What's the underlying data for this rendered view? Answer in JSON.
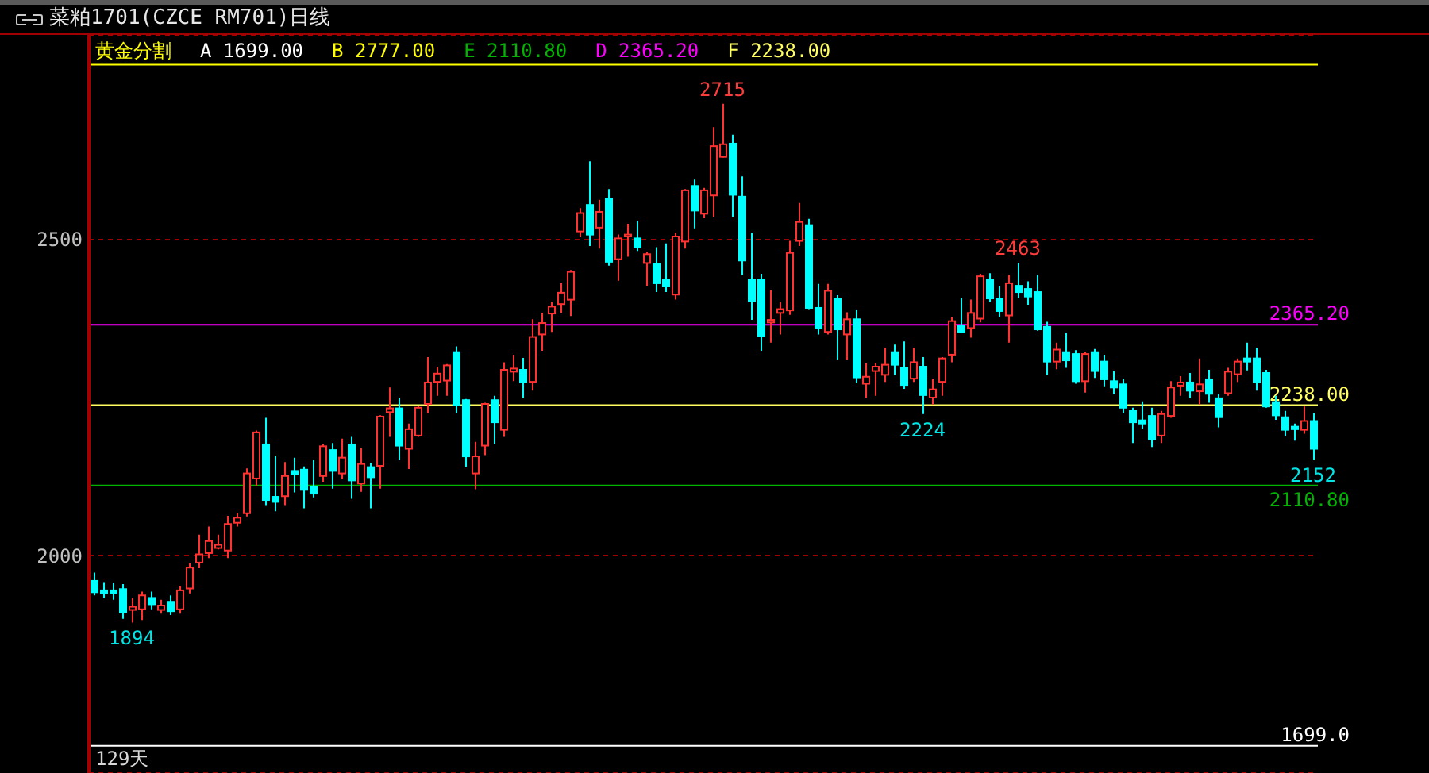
{
  "chart_data": {
    "type": "candlestick",
    "title": "菜粕1701(CZCE RM701)日线",
    "categories": [
      null,
      null,
      null,
      null,
      null,
      null,
      null,
      null,
      null,
      null,
      null,
      null,
      null,
      null,
      null,
      null,
      null,
      null,
      null,
      null,
      null,
      null,
      null,
      null,
      null,
      null,
      null,
      null,
      null,
      null,
      null,
      null,
      null,
      null,
      null,
      null,
      null,
      null,
      null,
      null,
      null,
      null,
      null,
      null,
      null,
      null,
      null,
      null,
      null,
      null,
      null,
      null,
      null,
      null,
      null,
      null,
      null,
      null,
      null,
      null,
      null,
      null,
      null,
      null,
      null,
      null,
      null,
      null,
      null,
      null,
      null,
      null,
      null,
      null,
      null,
      null,
      null,
      null,
      null,
      null,
      null,
      null,
      null,
      null,
      null,
      null,
      null,
      null,
      null,
      null,
      null,
      null,
      null,
      null,
      null,
      null,
      null,
      null,
      null,
      null,
      null,
      null,
      null,
      null,
      null,
      null,
      null,
      null,
      null,
      null,
      null,
      null,
      null,
      null,
      null,
      null,
      null,
      null,
      null,
      null,
      null,
      null,
      null,
      null,
      null,
      null,
      null,
      null,
      null
    ],
    "ohlc": [
      [
        1960,
        1973,
        1937,
        1942
      ],
      [
        1945,
        1958,
        1933,
        1940
      ],
      [
        1945,
        1957,
        1930,
        1940
      ],
      [
        1947,
        1955,
        1900,
        1910
      ],
      [
        1914,
        1933,
        1894,
        1919
      ],
      [
        1915,
        1943,
        1898,
        1937
      ],
      [
        1933,
        1943,
        1915,
        1923
      ],
      [
        1914,
        1930,
        1908,
        1921
      ],
      [
        1927,
        1937,
        1906,
        1912
      ],
      [
        1915,
        1952,
        1908,
        1945
      ],
      [
        1948,
        1988,
        1940,
        1981
      ],
      [
        1989,
        2033,
        1980,
        2002
      ],
      [
        2004,
        2046,
        1996,
        2023
      ],
      [
        2012,
        2033,
        2010,
        2017
      ],
      [
        2008,
        2063,
        1996,
        2050
      ],
      [
        2052,
        2068,
        2046,
        2060
      ],
      [
        2067,
        2138,
        2062,
        2130
      ],
      [
        2122,
        2198,
        2110,
        2195
      ],
      [
        2176,
        2218,
        2080,
        2088
      ],
      [
        2093,
        2157,
        2070,
        2085
      ],
      [
        2094,
        2148,
        2080,
        2126
      ],
      [
        2134,
        2155,
        2100,
        2129
      ],
      [
        2136,
        2141,
        2075,
        2104
      ],
      [
        2109,
        2151,
        2092,
        2098
      ],
      [
        2126,
        2176,
        2117,
        2173
      ],
      [
        2167,
        2178,
        2106,
        2134
      ],
      [
        2130,
        2185,
        2121,
        2155
      ],
      [
        2176,
        2188,
        2090,
        2119
      ],
      [
        2114,
        2171,
        2101,
        2145
      ],
      [
        2140,
        2146,
        2075,
        2124
      ],
      [
        2142,
        2222,
        2106,
        2220
      ],
      [
        2227,
        2266,
        2188,
        2233
      ],
      [
        2233,
        2249,
        2151,
        2174
      ],
      [
        2169,
        2209,
        2137,
        2200
      ],
      [
        2190,
        2237,
        2188,
        2234
      ],
      [
        2240,
        2314,
        2226,
        2274
      ],
      [
        2275,
        2299,
        2253,
        2288
      ],
      [
        2277,
        2303,
        2253,
        2301
      ],
      [
        2322,
        2331,
        2226,
        2238
      ],
      [
        2246,
        2248,
        2140,
        2157
      ],
      [
        2130,
        2180,
        2105,
        2157
      ],
      [
        2174,
        2242,
        2159,
        2240
      ],
      [
        2246,
        2253,
        2176,
        2211
      ],
      [
        2199,
        2306,
        2188,
        2294
      ],
      [
        2291,
        2318,
        2276,
        2296
      ],
      [
        2294,
        2313,
        2250,
        2274
      ],
      [
        2275,
        2374,
        2261,
        2346
      ],
      [
        2350,
        2384,
        2324,
        2368
      ],
      [
        2383,
        2402,
        2354,
        2394
      ],
      [
        2398,
        2431,
        2384,
        2416
      ],
      [
        2405,
        2452,
        2379,
        2449
      ],
      [
        2513,
        2550,
        2505,
        2542
      ],
      [
        2555,
        2624,
        2490,
        2508
      ],
      [
        2519,
        2563,
        2486,
        2544
      ],
      [
        2565,
        2580,
        2459,
        2465
      ],
      [
        2469,
        2508,
        2435,
        2502
      ],
      [
        2505,
        2525,
        2473,
        2508
      ],
      [
        2502,
        2530,
        2482,
        2488
      ],
      [
        2463,
        2480,
        2427,
        2477
      ],
      [
        2461,
        2488,
        2417,
        2431
      ],
      [
        2436,
        2494,
        2417,
        2427
      ],
      [
        2413,
        2511,
        2405,
        2505
      ],
      [
        2497,
        2580,
        2486,
        2578
      ],
      [
        2585,
        2595,
        2518,
        2546
      ],
      [
        2541,
        2582,
        2534,
        2578
      ],
      [
        2570,
        2678,
        2536,
        2648
      ],
      [
        2631,
        2715,
        2630,
        2651
      ],
      [
        2652,
        2666,
        2536,
        2571
      ],
      [
        2568,
        2600,
        2444,
        2467
      ],
      [
        2437,
        2511,
        2373,
        2402
      ],
      [
        2436,
        2446,
        2324,
        2348
      ],
      [
        2369,
        2420,
        2337,
        2373
      ],
      [
        2384,
        2402,
        2350,
        2390
      ],
      [
        2388,
        2498,
        2381,
        2479
      ],
      [
        2498,
        2558,
        2490,
        2528
      ],
      [
        2523,
        2533,
        2390,
        2392
      ],
      [
        2392,
        2430,
        2350,
        2360
      ],
      [
        2354,
        2430,
        2350,
        2419
      ],
      [
        2407,
        2412,
        2310,
        2358
      ],
      [
        2350,
        2385,
        2310,
        2374
      ],
      [
        2374,
        2389,
        2274,
        2282
      ],
      [
        2272,
        2304,
        2250,
        2283
      ],
      [
        2292,
        2304,
        2253,
        2299
      ],
      [
        2286,
        2329,
        2275,
        2302
      ],
      [
        2322,
        2334,
        2286,
        2302
      ],
      [
        2297,
        2339,
        2264,
        2270
      ],
      [
        2280,
        2329,
        2275,
        2306
      ],
      [
        2299,
        2314,
        2224,
        2254
      ],
      [
        2250,
        2279,
        2239,
        2263
      ],
      [
        2275,
        2314,
        2253,
        2312
      ],
      [
        2318,
        2377,
        2306,
        2371
      ],
      [
        2364,
        2407,
        2352,
        2354
      ],
      [
        2360,
        2405,
        2345,
        2384
      ],
      [
        2375,
        2446,
        2369,
        2442
      ],
      [
        2437,
        2447,
        2402,
        2407
      ],
      [
        2407,
        2427,
        2377,
        2387
      ],
      [
        2380,
        2444,
        2337,
        2431
      ],
      [
        2427,
        2463,
        2407,
        2417
      ],
      [
        2422,
        2434,
        2397,
        2410
      ],
      [
        2417,
        2444,
        2356,
        2358
      ],
      [
        2362,
        2370,
        2286,
        2307
      ],
      [
        2307,
        2337,
        2295,
        2326
      ],
      [
        2322,
        2353,
        2297,
        2309
      ],
      [
        2319,
        2325,
        2272,
        2276
      ],
      [
        2276,
        2322,
        2258,
        2319
      ],
      [
        2322,
        2327,
        2281,
        2292
      ],
      [
        2307,
        2318,
        2268,
        2279
      ],
      [
        2276,
        2292,
        2256,
        2266
      ],
      [
        2271,
        2279,
        2226,
        2234
      ],
      [
        2229,
        2234,
        2178,
        2211
      ],
      [
        2214,
        2244,
        2201,
        2209
      ],
      [
        2221,
        2234,
        2172,
        2184
      ],
      [
        2190,
        2229,
        2178,
        2224
      ],
      [
        2221,
        2276,
        2218,
        2266
      ],
      [
        2269,
        2284,
        2253,
        2274
      ],
      [
        2274,
        2289,
        2250,
        2261
      ],
      [
        2260,
        2312,
        2239,
        2271
      ],
      [
        2279,
        2294,
        2242,
        2256
      ],
      [
        2249,
        2255,
        2203,
        2219
      ],
      [
        2257,
        2297,
        2253,
        2291
      ],
      [
        2287,
        2312,
        2275,
        2307
      ],
      [
        2312,
        2337,
        2293,
        2307
      ],
      [
        2312,
        2329,
        2261,
        2275
      ],
      [
        2289,
        2294,
        2234,
        2236
      ],
      [
        2243,
        2253,
        2215,
        2222
      ],
      [
        2219,
        2229,
        2189,
        2199
      ],
      [
        2204,
        2209,
        2182,
        2200
      ],
      [
        2199,
        2236,
        2193,
        2213
      ],
      [
        2213,
        2226,
        2152,
        2169
      ]
    ],
    "colors": [
      "#00ffff",
      "#00ffff",
      "#00ffff",
      "#00ffff",
      "#ff3232",
      "#ff3232",
      "#00ffff",
      "#ff3232",
      "#00ffff",
      "#ff3232",
      "#ff3232",
      "#ff3232",
      "#ff3232",
      "#ff3232",
      "#ff3232",
      "#ff3232",
      "#ff3232",
      "#ff3232",
      "#00ffff",
      "#00ffff",
      "#ff3232",
      "#00ffff",
      "#00ffff",
      "#00ffff",
      "#ff3232",
      "#00ffff",
      "#ff3232",
      "#00ffff",
      "#ff3232",
      "#00ffff",
      "#ff3232",
      "#ff3232",
      "#00ffff",
      "#ff3232",
      "#ff3232",
      "#ff3232",
      "#ff3232",
      "#ff3232",
      "#00ffff",
      "#00ffff",
      "#ff3232",
      "#ff3232",
      "#00ffff",
      "#ff3232",
      "#ff3232",
      "#00ffff",
      "#ff3232",
      "#ff3232",
      "#ff3232",
      "#ff3232",
      "#ff3232",
      "#ff3232",
      "#00ffff",
      "#ff3232",
      "#00ffff",
      "#ff3232",
      "#ff3232",
      "#00ffff",
      "#ff3232",
      "#00ffff",
      "#00ffff",
      "#ff3232",
      "#ff3232",
      "#00ffff",
      "#ff3232",
      "#ff3232",
      "#ff3232",
      "#00ffff",
      "#00ffff",
      "#00ffff",
      "#00ffff",
      "#ff3232",
      "#ff3232",
      "#ff3232",
      "#ff3232",
      "#00ffff",
      "#00ffff",
      "#ff3232",
      "#00ffff",
      "#ff3232",
      "#00ffff",
      "#ff3232",
      "#ff3232",
      "#ff3232",
      "#00ffff",
      "#00ffff",
      "#ff3232",
      "#00ffff",
      "#ff3232",
      "#ff3232",
      "#ff3232",
      "#00ffff",
      "#ff3232",
      "#ff3232",
      "#00ffff",
      "#00ffff",
      "#ff3232",
      "#00ffff",
      "#00ffff",
      "#00ffff",
      "#00ffff",
      "#ff3232",
      "#00ffff",
      "#00ffff",
      "#ff3232",
      "#00ffff",
      "#00ffff",
      "#00ffff",
      "#00ffff",
      "#00ffff",
      "#00ffff",
      "#00ffff",
      "#ff3232",
      "#ff3232",
      "#ff3232",
      "#00ffff",
      "#ff3232",
      "#00ffff",
      "#00ffff",
      "#ff3232",
      "#ff3232",
      "#00ffff",
      "#00ffff",
      "#00ffff",
      "#00ffff",
      "#00ffff",
      "#00ffff",
      "#ff3232",
      "#00ffff"
    ],
    "ylim": [
      1656,
      2824
    ],
    "yticks": [
      2000,
      2500
    ],
    "grid": "y",
    "tick_labels": "y",
    "ref_lines": [
      {
        "axis": "y",
        "value": 1699,
        "label": "1699.0",
        "color": "#ffffff"
      },
      {
        "axis": "y",
        "value": 2777,
        "color": "#ffff00"
      },
      {
        "axis": "y",
        "value": 2110.8,
        "label": "2110.80",
        "color": "#00b400"
      },
      {
        "axis": "y",
        "value": 2365.2,
        "label": "2365.20",
        "color": "#ff00ff"
      },
      {
        "axis": "y",
        "value": 2238,
        "label": "2238.00",
        "color": "#ffff60"
      }
    ],
    "annotations": [
      "黄金分割",
      "A 1699.00",
      "B 2777.00",
      "E 2110.80",
      "D 2365.20",
      "F 2238.00",
      {
        "text": "2715",
        "y": 2715
      },
      {
        "text": "2463",
        "y": 2463
      },
      {
        "text": "1894",
        "y": 1894
      },
      {
        "text": "2224",
        "y": 2224
      },
      {
        "text": "2152",
        "y": 2152
      },
      "129天"
    ]
  }
}
